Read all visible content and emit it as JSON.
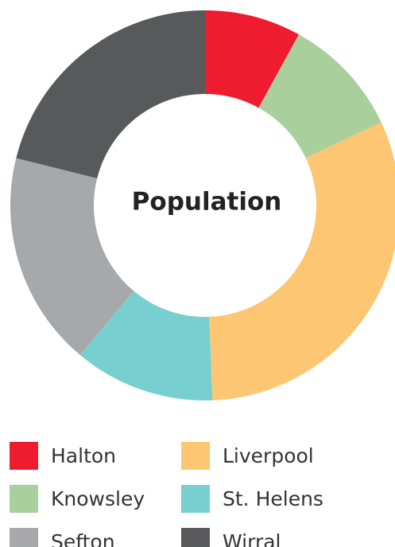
{
  "chart_data": {
    "type": "donut",
    "title": "Population",
    "series": [
      {
        "name": "Halton",
        "color": "#ee1c2e",
        "values": [
          8
        ]
      },
      {
        "name": "Knowsley",
        "color": "#a9cf9d",
        "values": [
          10
        ]
      },
      {
        "name": "Liverpool",
        "color": "#fdc673",
        "values": [
          31.4
        ]
      },
      {
        "name": "St. Helens",
        "color": "#78cfcf",
        "values": [
          11.7
        ]
      },
      {
        "name": "Sefton",
        "color": "#a7a8ac",
        "values": [
          17.8
        ]
      },
      {
        "name": "Wirral",
        "color": "#58595b",
        "values": [
          21.1
        ]
      }
    ]
  }
}
